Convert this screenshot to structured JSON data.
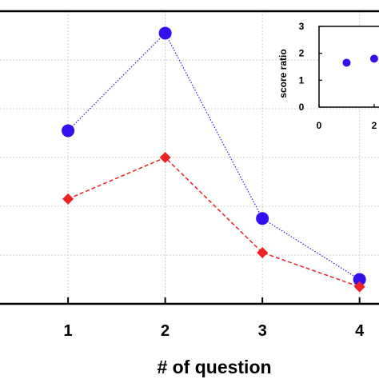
{
  "chart_data": [
    {
      "type": "line",
      "title": "",
      "xlabel": "# of question",
      "ylabel": "",
      "x": [
        1,
        2,
        3,
        4
      ],
      "xlim": [
        0.3,
        4.2
      ],
      "ylim": [
        0.0,
        1.2
      ],
      "grid": true,
      "series": [
        {
          "values": [
            0.71,
            1.11,
            0.35,
            0.1
          ],
          "color": "#3311ee",
          "marker": "circle",
          "line": "dotted"
        },
        {
          "values": [
            0.43,
            0.6,
            0.21,
            0.07
          ],
          "color": "#ee2222",
          "marker": "diamond",
          "line": "dashed"
        }
      ]
    },
    {
      "type": "scatter",
      "title": "",
      "xlabel": "",
      "ylabel": "score ratio",
      "yticks": [
        "0",
        "1",
        "2",
        "3"
      ],
      "xticks": [
        "0",
        "2"
      ],
      "ylim": [
        0,
        3
      ],
      "xlim": [
        0,
        2.35
      ],
      "series": [
        {
          "x": [
            1,
            2
          ],
          "values": [
            1.65,
            1.8
          ],
          "color": "#3311ee",
          "marker": "circle"
        }
      ]
    }
  ]
}
